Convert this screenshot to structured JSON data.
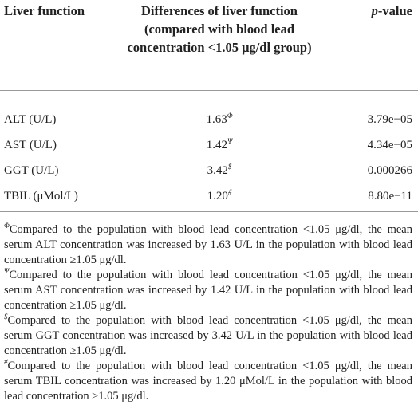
{
  "header": {
    "columns": [
      "Liver function",
      "Differences of liver function (compared with blood lead concentration <1.05 μg/dl group)",
      {
        "italic": "p",
        "text": "-value"
      }
    ]
  },
  "table": {
    "rows": [
      {
        "label": "ALT (U/L)",
        "value": "1.63",
        "mark": "Φ",
        "p": "3.79e−05"
      },
      {
        "label": "AST (U/L)",
        "value": "1.42",
        "mark": "Ψ",
        "p": "4.34e−05"
      },
      {
        "label": "GGT (U/L)",
        "value": "3.42",
        "mark": "$",
        "p": "0.000266"
      },
      {
        "label": "TBIL (μMol/L)",
        "value": "1.20",
        "mark": "#",
        "p": "8.80e−11"
      }
    ]
  },
  "footnotes": [
    {
      "mark": "Φ",
      "text": "Compared to the population with blood lead concentration <1.05 μg/dl, the mean serum ALT concentration was increased by 1.63 U/L in the population with blood lead concentration ≥1.05 μg/dl."
    },
    {
      "mark": "Ψ",
      "text": "Compared to the population with blood lead concentration <1.05 μg/dl, the mean serum AST concentration was increased by 1.42 U/L in the population with blood lead concentration ≥1.05 μg/dl."
    },
    {
      "mark": "$",
      "text": "Compared to the population with blood lead concentration <1.05 μg/dl, the mean serum GGT concentration was increased by 3.42 U/L in the population with blood lead concentration ≥1.05 μg/dl."
    },
    {
      "mark": "#",
      "text": "Compared to the population with blood lead concentration <1.05 μg/dl, the mean serum TBIL concentration was increased by 1.20 μMol/L in the population with blood lead concentration ≥1.05 μg/dl."
    }
  ]
}
